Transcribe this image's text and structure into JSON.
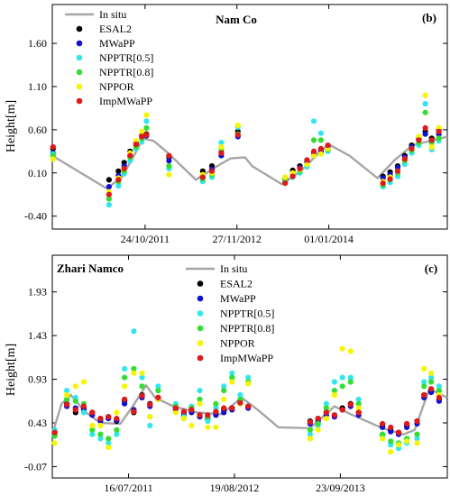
{
  "colors": {
    "insitu": "#a6a6a6",
    "esal2": "#000000",
    "mwapp": "#1010d0",
    "npptr05": "#33e6ee",
    "npptr08": "#33dd33",
    "nppor": "#f5f500",
    "impmwapp": "#e01a1a"
  },
  "chart_data": [
    {
      "type": "scatter",
      "title": "Nam Co",
      "panel": "(b)",
      "ylabel": "Height[m]",
      "xlim": [
        "2010-09-15",
        "2015-06-01"
      ],
      "ylim": [
        -0.55,
        2.05
      ],
      "yticks": [
        "-0.40",
        "0.10",
        "0.60",
        "1.10",
        "1.60"
      ],
      "xticks": [
        {
          "date": "2011-10-24",
          "label": "24/10/2011"
        },
        {
          "date": "2012-11-27",
          "label": "27/11/2012"
        },
        {
          "date": "2014-01-01",
          "label": "01/01/2014"
        }
      ],
      "legend_position": "top-left",
      "legend": [
        {
          "key": "insitu",
          "label": "In situ",
          "kind": "line"
        },
        {
          "key": "esal2",
          "label": "ESAL2",
          "kind": "dot"
        },
        {
          "key": "mwapp",
          "label": "MWaPP",
          "kind": "dot"
        },
        {
          "key": "npptr05",
          "label": "NPPTR[0.5]",
          "kind": "dot"
        },
        {
          "key": "npptr08",
          "label": "NPPTR[0.8]",
          "kind": "dot"
        },
        {
          "key": "nppor",
          "label": "NPPOR",
          "kind": "dot"
        },
        {
          "key": "impmwapp",
          "label": "ImpMWaPP",
          "kind": "dot"
        }
      ],
      "insitu": [
        [
          "2010-09-15",
          0.3
        ],
        [
          "2011-05-10",
          -0.08
        ],
        [
          "2011-07-15",
          0.05
        ],
        [
          "2011-09-10",
          0.32
        ],
        [
          "2011-10-15",
          0.5
        ],
        [
          "2011-12-01",
          0.47
        ],
        [
          "2012-02-01",
          0.33
        ],
        [
          "2012-06-01",
          0.02
        ],
        [
          "2012-09-15",
          0.2
        ],
        [
          "2012-11-01",
          0.27
        ],
        [
          "2013-01-01",
          0.28
        ],
        [
          "2013-02-01",
          0.18
        ],
        [
          "2013-06-10",
          -0.03
        ],
        [
          "2013-09-01",
          0.12
        ],
        [
          "2013-11-15",
          0.32
        ],
        [
          "2014-01-01",
          0.43
        ],
        [
          "2014-04-01",
          0.3
        ],
        [
          "2014-08-01",
          0.04
        ],
        [
          "2014-10-15",
          0.25
        ],
        [
          "2015-01-01",
          0.42
        ],
        [
          "2015-06-01",
          0.52
        ]
      ],
      "satellite_dates": [
        "2010-09-18",
        "2011-05-20",
        "2011-06-30",
        "2011-07-25",
        "2011-08-20",
        "2011-09-15",
        "2011-10-10",
        "2011-10-30",
        "2012-02-05",
        "2012-07-01",
        "2012-08-10",
        "2012-09-20",
        "2012-12-01",
        "2013-06-25",
        "2013-07-28",
        "2013-08-28",
        "2013-09-28",
        "2013-10-28",
        "2013-11-28",
        "2013-12-28",
        "2014-08-25",
        "2014-09-25",
        "2014-10-28",
        "2014-11-28",
        "2014-12-28",
        "2015-01-28",
        "2015-02-25",
        "2015-03-25",
        "2015-04-25"
      ],
      "series": {
        "esal2": [
          0.38,
          0.02,
          0.12,
          0.22,
          0.35,
          0.45,
          0.53,
          0.55,
          0.28,
          0.12,
          0.18,
          0.34,
          0.58,
          0.03,
          0.13,
          0.18,
          0.23,
          0.3,
          0.34,
          0.4,
          0.06,
          0.11,
          0.18,
          0.3,
          0.42,
          0.5,
          0.58,
          0.5,
          0.6
        ],
        "mwapp": [
          0.33,
          -0.06,
          0.07,
          0.18,
          0.3,
          0.42,
          0.51,
          0.53,
          0.24,
          0.05,
          0.14,
          0.3,
          0.52,
          0.0,
          0.1,
          0.16,
          0.22,
          0.33,
          0.36,
          0.41,
          0.04,
          0.08,
          0.16,
          0.28,
          0.4,
          0.48,
          0.55,
          0.47,
          0.55
        ],
        "npptr05": [
          0.32,
          -0.27,
          -0.05,
          0.09,
          0.24,
          0.38,
          0.46,
          0.7,
          0.15,
          0.0,
          0.05,
          0.45,
          0.63,
          -0.01,
          0.05,
          0.1,
          0.17,
          0.7,
          0.56,
          0.35,
          -0.06,
          -0.01,
          0.06,
          0.2,
          0.33,
          0.42,
          0.9,
          0.37,
          0.47
        ],
        "npptr08": [
          0.3,
          -0.2,
          0.0,
          0.12,
          0.28,
          0.4,
          0.5,
          0.62,
          0.18,
          0.03,
          0.08,
          0.38,
          0.55,
          0.02,
          0.08,
          0.12,
          0.2,
          0.48,
          0.48,
          0.37,
          -0.04,
          0.02,
          0.1,
          0.24,
          0.36,
          0.45,
          0.8,
          0.45,
          0.5
        ],
        "nppor": [
          0.26,
          -0.12,
          0.04,
          0.15,
          0.33,
          0.47,
          0.58,
          0.77,
          0.08,
          0.08,
          0.1,
          0.4,
          0.65,
          0.05,
          0.1,
          0.14,
          0.2,
          0.3,
          0.32,
          0.38,
          0.0,
          0.05,
          0.12,
          0.26,
          0.38,
          0.52,
          1.0,
          0.4,
          0.62
        ],
        "impmwapp": [
          0.4,
          -0.15,
          0.02,
          0.15,
          0.3,
          0.43,
          0.52,
          0.54,
          0.3,
          0.05,
          0.12,
          0.33,
          0.54,
          -0.02,
          0.06,
          0.15,
          0.25,
          0.35,
          0.38,
          0.42,
          -0.02,
          0.03,
          0.12,
          0.26,
          0.38,
          0.48,
          0.62,
          0.48,
          0.58
        ]
      }
    },
    {
      "type": "scatter",
      "title": "Zhari Namco",
      "panel": "(c)",
      "ylabel": "Height[m]",
      "xlim": [
        "2010-10-01",
        "2014-11-01"
      ],
      "ylim": [
        -0.2,
        2.35
      ],
      "yticks": [
        "-0.07",
        "0.43",
        "0.93",
        "1.43",
        "1.93"
      ],
      "xticks": [
        {
          "date": "2011-07-16",
          "label": "16/07/2011"
        },
        {
          "date": "2012-08-19",
          "label": "19/08/2012"
        },
        {
          "date": "2013-09-23",
          "label": "23/09/2013"
        }
      ],
      "legend_position": "top-center",
      "legend": [
        {
          "key": "insitu",
          "label": "In situ",
          "kind": "line"
        },
        {
          "key": "esal2",
          "label": "ESAL2",
          "kind": "dot"
        },
        {
          "key": "mwapp",
          "label": "MWaPP",
          "kind": "dot"
        },
        {
          "key": "npptr05",
          "label": "NPPTR[0.5]",
          "kind": "dot"
        },
        {
          "key": "npptr08",
          "label": "NPPTR[0.8]",
          "kind": "dot"
        },
        {
          "key": "nppor",
          "label": "NPPOR",
          "kind": "dot"
        },
        {
          "key": "impmwapp",
          "label": "ImpMWaPP",
          "kind": "dot"
        }
      ],
      "insitu": [
        [
          "2010-10-01",
          0.3
        ],
        [
          "2010-11-05",
          0.65
        ],
        [
          "2010-12-10",
          0.75
        ],
        [
          "2011-02-01",
          0.56
        ],
        [
          "2011-04-01",
          0.43
        ],
        [
          "2011-06-15",
          0.42
        ],
        [
          "2011-08-01",
          0.62
        ],
        [
          "2011-09-20",
          0.86
        ],
        [
          "2011-10-25",
          0.72
        ],
        [
          "2012-01-01",
          0.62
        ],
        [
          "2012-04-01",
          0.55
        ],
        [
          "2012-07-01",
          0.53
        ],
        [
          "2012-09-15",
          0.72
        ],
        [
          "2012-11-15",
          0.58
        ],
        [
          "2013-02-01",
          0.38
        ],
        [
          "2013-06-01",
          0.37
        ],
        [
          "2013-09-01",
          0.62
        ],
        [
          "2013-11-01",
          0.53
        ],
        [
          "2014-03-01",
          0.37
        ],
        [
          "2014-05-20",
          0.3
        ],
        [
          "2014-07-01",
          0.35
        ],
        [
          "2014-08-25",
          0.82
        ],
        [
          "2014-11-01",
          0.72
        ]
      ],
      "satellite_dates": [
        "2010-10-10",
        "2010-11-25",
        "2010-12-28",
        "2011-01-28",
        "2011-03-01",
        "2011-04-01",
        "2011-05-01",
        "2011-06-01",
        "2011-07-01",
        "2011-08-05",
        "2011-09-05",
        "2011-10-05",
        "2011-11-05",
        "2012-01-10",
        "2012-02-10",
        "2012-03-10",
        "2012-04-10",
        "2012-05-10",
        "2012-06-10",
        "2012-07-10",
        "2012-08-10",
        "2012-09-10",
        "2012-10-10",
        "2013-06-01",
        "2013-07-01",
        "2013-08-01",
        "2013-09-01",
        "2013-10-01",
        "2013-11-01",
        "2013-12-01",
        "2014-03-01",
        "2014-04-01",
        "2014-05-01",
        "2014-06-01",
        "2014-07-10",
        "2014-08-05",
        "2014-09-01",
        "2014-10-01"
      ],
      "series": {
        "esal2": [
          0.33,
          0.65,
          0.55,
          0.6,
          0.55,
          0.48,
          0.5,
          0.45,
          0.68,
          0.55,
          0.75,
          0.65,
          0.72,
          0.6,
          0.55,
          0.58,
          0.52,
          0.5,
          0.55,
          0.58,
          0.6,
          0.68,
          0.62,
          0.45,
          0.48,
          0.55,
          0.52,
          0.6,
          0.65,
          0.55,
          0.4,
          0.35,
          0.32,
          0.4,
          0.45,
          0.75,
          0.8,
          0.7
        ],
        "mwapp": [
          0.3,
          0.62,
          0.6,
          0.58,
          0.52,
          0.45,
          0.48,
          0.46,
          0.65,
          0.58,
          0.72,
          0.62,
          0.7,
          0.58,
          0.52,
          0.55,
          0.5,
          0.48,
          0.52,
          0.55,
          0.58,
          0.65,
          0.6,
          0.42,
          0.45,
          0.52,
          0.5,
          0.58,
          0.62,
          0.52,
          0.38,
          0.33,
          0.3,
          0.38,
          0.42,
          0.72,
          0.78,
          0.68
        ],
        "npptr05": [
          0.35,
          0.8,
          0.72,
          0.55,
          0.3,
          0.25,
          0.2,
          0.3,
          1.05,
          1.48,
          0.95,
          0.4,
          0.85,
          0.65,
          0.5,
          0.62,
          0.8,
          0.45,
          0.6,
          0.85,
          1.0,
          0.75,
          0.95,
          0.3,
          0.4,
          0.65,
          0.9,
          0.95,
          0.95,
          0.7,
          0.28,
          0.18,
          0.14,
          0.2,
          0.25,
          0.9,
          0.95,
          0.85
        ],
        "npptr08": [
          0.28,
          0.7,
          0.68,
          0.65,
          0.35,
          0.3,
          0.25,
          0.35,
          0.95,
          1.05,
          0.85,
          0.5,
          0.8,
          0.62,
          0.48,
          0.6,
          0.7,
          0.5,
          0.65,
          0.8,
          0.95,
          0.7,
          0.9,
          0.35,
          0.42,
          0.6,
          0.8,
          0.85,
          0.9,
          0.65,
          0.3,
          0.22,
          0.2,
          0.25,
          0.3,
          0.85,
          0.9,
          0.8
        ],
        "nppor": [
          0.2,
          0.75,
          0.85,
          0.9,
          0.4,
          0.4,
          0.15,
          0.55,
          0.85,
          1.0,
          1.0,
          0.5,
          0.7,
          0.55,
          0.48,
          0.4,
          0.65,
          0.38,
          0.38,
          0.7,
          0.9,
          0.65,
          0.88,
          0.25,
          0.35,
          0.48,
          0.75,
          1.28,
          1.25,
          0.6,
          0.25,
          0.1,
          0.18,
          0.22,
          0.2,
          1.05,
          1.0,
          0.75
        ],
        "impmwapp": [
          0.32,
          0.64,
          0.58,
          0.62,
          0.55,
          0.48,
          0.5,
          0.48,
          0.7,
          0.56,
          0.74,
          0.64,
          0.72,
          0.6,
          0.56,
          0.58,
          0.52,
          0.52,
          0.56,
          0.6,
          0.6,
          0.66,
          0.62,
          0.44,
          0.48,
          0.55,
          0.52,
          0.58,
          0.64,
          0.55,
          0.42,
          0.38,
          0.32,
          0.42,
          0.45,
          0.75,
          0.82,
          0.72
        ]
      }
    }
  ]
}
